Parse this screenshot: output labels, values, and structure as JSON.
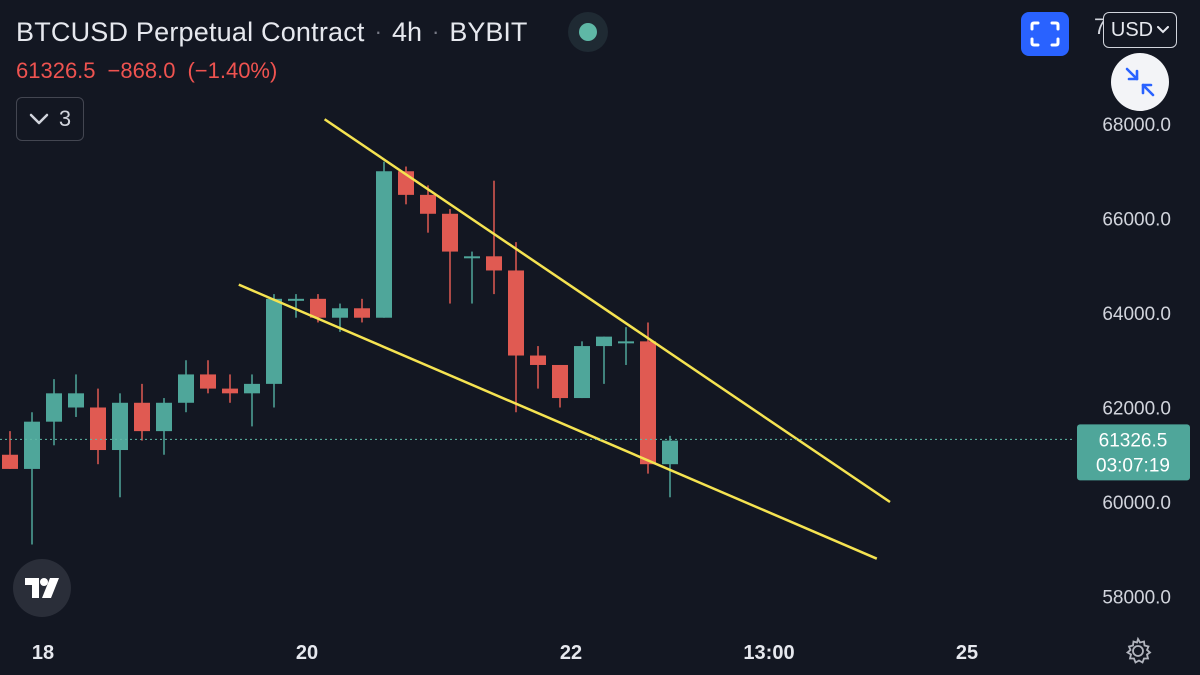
{
  "header": {
    "symbol": "BTCUSD Perpetual Contract",
    "separator": "·",
    "interval": "4h",
    "exchange": "BYBIT",
    "last_price": "61326.5",
    "change": "−868.0",
    "change_pct": "(−1.40%)"
  },
  "toolbar": {
    "indicator_count": "3",
    "currency_label": "USD",
    "partial_label": "7"
  },
  "colors": {
    "background": "#131722",
    "up": "#4fa69a",
    "down": "#e05a52",
    "trendline": "#f5e351",
    "accent": "#2962ff"
  },
  "icons": [
    "chevron-down-icon",
    "fullscreen-icon",
    "compress-icon",
    "tradingview-logo-icon",
    "gear-icon",
    "status-dot-icon"
  ],
  "chart_data": {
    "type": "candlestick",
    "x_ticks": [
      {
        "label": "18",
        "index": 1.5
      },
      {
        "label": "20",
        "index": 13.5
      },
      {
        "label": "22",
        "index": 25.5
      },
      {
        "label": "13:00",
        "index": 34.5
      },
      {
        "label": "25",
        "index": 43.5
      }
    ],
    "y_ticks": [
      58000,
      60000,
      62000,
      64000,
      66000,
      68000
    ],
    "ylim": [
      57000,
      70000
    ],
    "candles": [
      {
        "o": 61000,
        "h": 61500,
        "l": 60700,
        "c": 60700
      },
      {
        "o": 60700,
        "h": 61900,
        "l": 59100,
        "c": 61700
      },
      {
        "o": 61700,
        "h": 62600,
        "l": 61200,
        "c": 62300
      },
      {
        "o": 62000,
        "h": 62700,
        "l": 61800,
        "c": 62300
      },
      {
        "o": 62000,
        "h": 62400,
        "l": 60800,
        "c": 61100
      },
      {
        "o": 61100,
        "h": 62300,
        "l": 60100,
        "c": 62100
      },
      {
        "o": 62100,
        "h": 62500,
        "l": 61300,
        "c": 61500
      },
      {
        "o": 61500,
        "h": 62200,
        "l": 61000,
        "c": 62100
      },
      {
        "o": 62100,
        "h": 63000,
        "l": 61900,
        "c": 62700
      },
      {
        "o": 62700,
        "h": 63000,
        "l": 62300,
        "c": 62400
      },
      {
        "o": 62400,
        "h": 62700,
        "l": 62100,
        "c": 62300
      },
      {
        "o": 62300,
        "h": 62700,
        "l": 61600,
        "c": 62500
      },
      {
        "o": 62500,
        "h": 64400,
        "l": 62000,
        "c": 64300
      },
      {
        "o": 64300,
        "h": 64400,
        "l": 63900,
        "c": 64300
      },
      {
        "o": 64300,
        "h": 64400,
        "l": 63800,
        "c": 63900
      },
      {
        "o": 63900,
        "h": 64200,
        "l": 63600,
        "c": 64100
      },
      {
        "o": 64100,
        "h": 64300,
        "l": 63800,
        "c": 63900
      },
      {
        "o": 63900,
        "h": 67200,
        "l": 63900,
        "c": 67000
      },
      {
        "o": 67000,
        "h": 67100,
        "l": 66300,
        "c": 66500
      },
      {
        "o": 66500,
        "h": 66700,
        "l": 65700,
        "c": 66100
      },
      {
        "o": 66100,
        "h": 66200,
        "l": 64200,
        "c": 65300
      },
      {
        "o": 65200,
        "h": 65300,
        "l": 64200,
        "c": 65200
      },
      {
        "o": 65200,
        "h": 66800,
        "l": 64400,
        "c": 64900
      },
      {
        "o": 64900,
        "h": 65500,
        "l": 61900,
        "c": 63100
      },
      {
        "o": 63100,
        "h": 63300,
        "l": 62400,
        "c": 62900
      },
      {
        "o": 62900,
        "h": 62900,
        "l": 62000,
        "c": 62200
      },
      {
        "o": 62200,
        "h": 63400,
        "l": 62200,
        "c": 63300
      },
      {
        "o": 63300,
        "h": 63500,
        "l": 62500,
        "c": 63500
      },
      {
        "o": 63400,
        "h": 63700,
        "l": 62900,
        "c": 63400
      },
      {
        "o": 63400,
        "h": 63800,
        "l": 60600,
        "c": 60800
      },
      {
        "o": 60800,
        "h": 61400,
        "l": 60100,
        "c": 61300
      }
    ],
    "trendlines": [
      {
        "x0": 14.3,
        "y0": 68100,
        "x1": 40.0,
        "y1": 60000
      },
      {
        "x0": 10.4,
        "y0": 64600,
        "x1": 39.4,
        "y1": 58800
      }
    ],
    "last_price": {
      "value": 61326.5,
      "label": "61326.5",
      "countdown": "03:07:19"
    }
  }
}
